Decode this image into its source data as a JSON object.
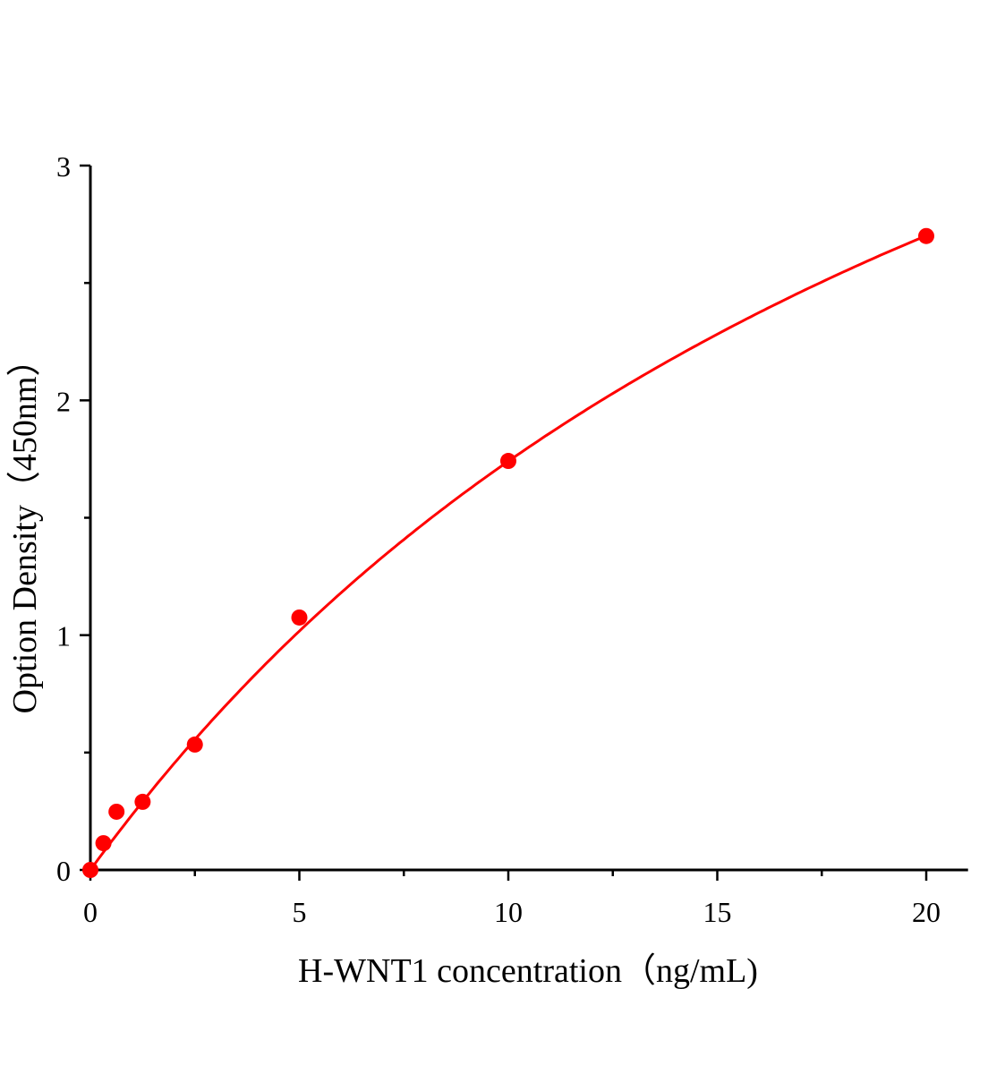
{
  "chart_data": {
    "type": "scatter",
    "title": "",
    "xlabel": "H-WNT1 concentration（ng/mL)",
    "ylabel": "Option Density（450nm）",
    "xlim": [
      0,
      21
    ],
    "ylim": [
      0,
      3
    ],
    "x_ticks": [
      0,
      5,
      10,
      15,
      20
    ],
    "x_tick_labels": [
      "0",
      "5",
      "10",
      "15",
      "20"
    ],
    "y_ticks": [
      0,
      1,
      2,
      3
    ],
    "y_tick_labels": [
      "0",
      "1",
      "2",
      "3"
    ],
    "grid": false,
    "legend": "none",
    "series": [
      {
        "x": [
          0,
          0.3125,
          0.625,
          1.25,
          2.5,
          5,
          10,
          20
        ],
        "y": [
          0.0,
          0.114,
          0.248,
          0.29,
          0.534,
          1.075,
          1.742,
          2.7
        ],
        "marker": "circle",
        "fit_line": true,
        "color": "#ff0000"
      }
    ]
  }
}
